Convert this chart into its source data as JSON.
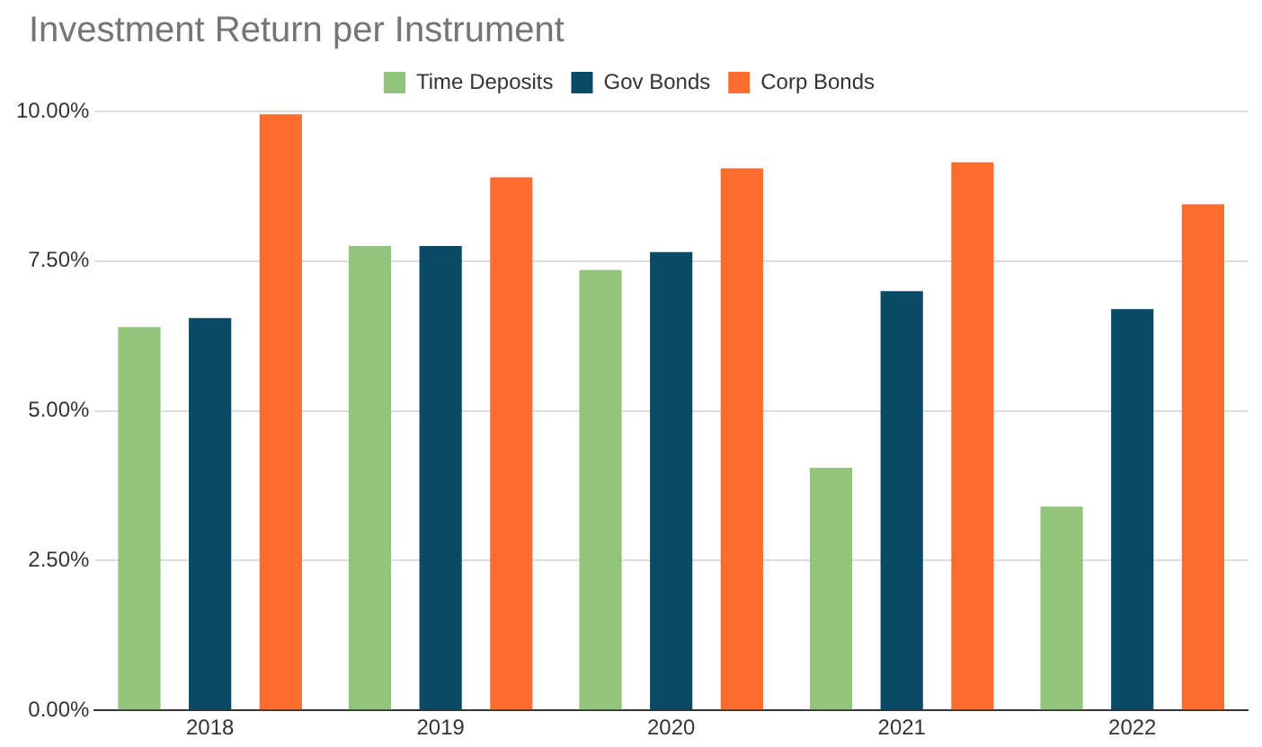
{
  "chart_data": {
    "type": "bar",
    "title": "Investment Return per Instrument",
    "categories": [
      "2018",
      "2019",
      "2020",
      "2021",
      "2022"
    ],
    "series": [
      {
        "name": "Time Deposits",
        "color": "#93c47d",
        "values": [
          6.4,
          7.75,
          7.35,
          4.05,
          3.4
        ]
      },
      {
        "name": "Gov Bonds",
        "color": "#0b4a66",
        "values": [
          6.55,
          7.75,
          7.65,
          7.0,
          6.7
        ]
      },
      {
        "name": "Corp Bonds",
        "color": "#ff6d2e",
        "values": [
          9.95,
          8.9,
          9.05,
          9.15,
          8.45
        ]
      }
    ],
    "ylim": [
      0,
      10
    ],
    "yticks": [
      {
        "value": 0,
        "label": "0.00%"
      },
      {
        "value": 2.5,
        "label": "2.50%"
      },
      {
        "value": 5,
        "label": "5.00%"
      },
      {
        "value": 7.5,
        "label": "7.50%"
      },
      {
        "value": 10,
        "label": "10.00%"
      }
    ],
    "grid": "y",
    "legend": "top"
  }
}
